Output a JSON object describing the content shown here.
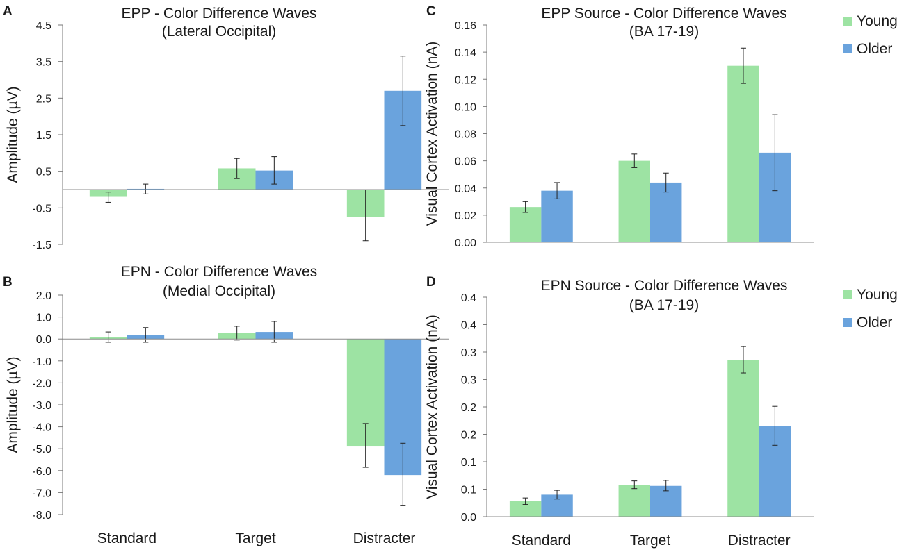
{
  "figure": {
    "colors": {
      "young": "#9de3a3",
      "older": "#6aa3dd",
      "axis": "#7a7a7a",
      "text": "#1a1a1a"
    }
  },
  "chart_data": [
    {
      "panel": "A",
      "type": "bar",
      "title": "EPP - Color Difference Waves",
      "subtitle": "(Lateral Occipital)",
      "xlabel": "",
      "ylabel": "Amplitude (µV)",
      "ylim": [
        -1.5,
        4.5
      ],
      "ytick_values": [
        -1.5,
        -0.5,
        0.5,
        1.5,
        2.5,
        3.5,
        4.5
      ],
      "ytick_labels": [
        "-1.5",
        "-0.5",
        "0.5",
        "1.5",
        "2.5",
        "3.5",
        "4.5"
      ],
      "categories": [
        "Standard",
        "Target",
        "Distracter"
      ],
      "show_category_labels": false,
      "series": [
        {
          "name": "Young",
          "values": [
            -0.2,
            0.58,
            -0.75
          ],
          "err_low": [
            -0.35,
            0.3,
            -1.4
          ],
          "err_high": [
            -0.07,
            0.85,
            0.0
          ]
        },
        {
          "name": "Older",
          "values": [
            0.02,
            0.52,
            2.7
          ],
          "err_low": [
            -0.12,
            0.15,
            1.75
          ],
          "err_high": [
            0.15,
            0.9,
            3.65
          ]
        }
      ]
    },
    {
      "panel": "B",
      "type": "bar",
      "title": "EPN - Color Difference Waves",
      "subtitle": "(Medial Occipital)",
      "xlabel": "",
      "ylabel": "Amplitude (µV)",
      "ylim": [
        -8.0,
        2.0
      ],
      "ytick_values": [
        -8,
        -7,
        -6,
        -5,
        -4,
        -3,
        -2,
        -1,
        0,
        1,
        2
      ],
      "ytick_labels": [
        "-8.0",
        "-7.0",
        "-6.0",
        "-5.0",
        "-4.0",
        "-3.0",
        "-2.0",
        "-1.0",
        "0.0",
        "1.0",
        "2.0"
      ],
      "categories": [
        "Standard",
        "Target",
        "Distracter"
      ],
      "show_category_labels": true,
      "series": [
        {
          "name": "Young",
          "values": [
            0.08,
            0.28,
            -4.9
          ],
          "err_low": [
            -0.15,
            -0.05,
            -5.85
          ],
          "err_high": [
            0.32,
            0.58,
            -3.85
          ]
        },
        {
          "name": "Older",
          "values": [
            0.18,
            0.32,
            -6.2
          ],
          "err_low": [
            -0.15,
            -0.15,
            -7.6
          ],
          "err_high": [
            0.52,
            0.8,
            -4.75
          ]
        }
      ]
    },
    {
      "panel": "C",
      "type": "bar",
      "title": "EPP Source - Color Difference Waves",
      "subtitle": "(BA 17-19)",
      "xlabel": "",
      "ylabel": "Visual Cortex Activation (nA)",
      "ylim": [
        0,
        0.16
      ],
      "ytick_values": [
        0,
        0.02,
        0.04,
        0.06,
        0.08,
        0.1,
        0.12,
        0.14,
        0.16
      ],
      "ytick_labels": [
        "0.00",
        "0.02",
        "0.04",
        "0.06",
        "0.08",
        "0.10",
        "0.12",
        "0.14",
        "0.16"
      ],
      "categories": [
        "Standard",
        "Target",
        "Distracter"
      ],
      "show_category_labels": false,
      "legend": [
        "Young",
        "Older"
      ],
      "series": [
        {
          "name": "Young",
          "values": [
            0.026,
            0.06,
            0.13
          ],
          "err_low": [
            0.022,
            0.055,
            0.117
          ],
          "err_high": [
            0.03,
            0.065,
            0.143
          ]
        },
        {
          "name": "Older",
          "values": [
            0.038,
            0.044,
            0.066
          ],
          "err_low": [
            0.032,
            0.037,
            0.038
          ],
          "err_high": [
            0.044,
            0.051,
            0.094
          ]
        }
      ]
    },
    {
      "panel": "D",
      "type": "bar",
      "title": "EPN Source - Color Difference Waves",
      "subtitle": "(BA 17-19)",
      "xlabel": "",
      "ylabel": "Visual Cortex Activation (nA)",
      "ylim": [
        0,
        0.4
      ],
      "ytick_values": [
        0,
        0.05,
        0.1,
        0.15,
        0.2,
        0.25,
        0.3,
        0.35,
        0.4
      ],
      "ytick_labels": [
        "0.0",
        "0.1",
        "0.1",
        "0.2",
        "0.2",
        "0.3",
        "0.3",
        "0.4",
        "0.4"
      ],
      "categories": [
        "Standard",
        "Target",
        "Distracter"
      ],
      "show_category_labels": true,
      "legend": [
        "Young",
        "Older"
      ],
      "series": [
        {
          "name": "Young",
          "values": [
            0.028,
            0.058,
            0.285
          ],
          "err_low": [
            0.022,
            0.051,
            0.262
          ],
          "err_high": [
            0.034,
            0.065,
            0.31
          ]
        },
        {
          "name": "Older",
          "values": [
            0.04,
            0.056,
            0.165
          ],
          "err_low": [
            0.032,
            0.047,
            0.13
          ],
          "err_high": [
            0.048,
            0.066,
            0.201
          ]
        }
      ]
    }
  ]
}
